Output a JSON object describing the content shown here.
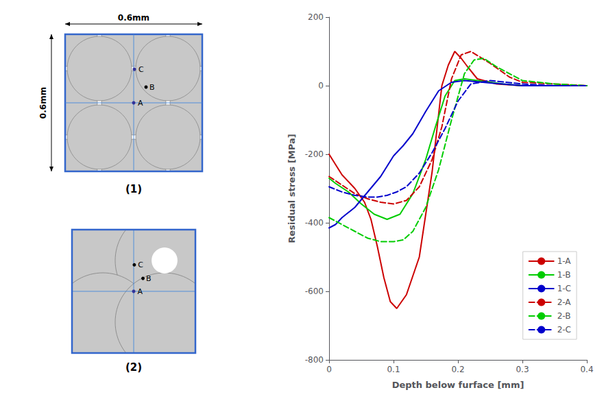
{
  "chart_data": {
    "type": "line",
    "xlabel": "Depth below furface [mm]",
    "ylabel": "Residual stress [MPa]",
    "xlim": [
      0,
      0.4
    ],
    "ylim": [
      -800,
      200
    ],
    "xticks": [
      0,
      0.1,
      0.2,
      0.3,
      0.4
    ],
    "yticks": [
      200,
      0,
      -200,
      -400,
      -600,
      -800
    ],
    "grid": false,
    "legend": "lower right",
    "annotations": [
      "0.6mm",
      "0.6mm",
      "A",
      "B",
      "C",
      "(1)",
      "A",
      "B",
      "C",
      "(2)"
    ],
    "series": [
      {
        "name": "1-A",
        "color": "#cc0000",
        "line_style": "solid",
        "x": [
          0.0,
          0.01,
          0.02,
          0.04,
          0.055,
          0.065,
          0.075,
          0.085,
          0.095,
          0.105,
          0.12,
          0.14,
          0.16,
          0.175,
          0.185,
          0.195,
          0.205,
          0.215,
          0.23,
          0.26,
          0.3,
          0.35,
          0.4
        ],
        "values": [
          -200,
          -230,
          -260,
          -300,
          -340,
          -390,
          -470,
          -560,
          -630,
          -650,
          -610,
          -500,
          -250,
          0,
          60,
          100,
          80,
          55,
          20,
          5,
          0,
          0,
          0
        ]
      },
      {
        "name": "1-B",
        "color": "#00cc00",
        "line_style": "solid",
        "x": [
          0.0,
          0.01,
          0.03,
          0.05,
          0.07,
          0.09,
          0.11,
          0.13,
          0.15,
          0.165,
          0.18,
          0.195,
          0.21,
          0.23,
          0.27,
          0.3,
          0.35,
          0.4
        ],
        "values": [
          -270,
          -285,
          -310,
          -345,
          -375,
          -390,
          -375,
          -315,
          -215,
          -120,
          -30,
          15,
          20,
          15,
          5,
          0,
          0,
          0
        ]
      },
      {
        "name": "1-C",
        "color": "#0000cc",
        "line_style": "solid",
        "x": [
          0.0,
          0.01,
          0.02,
          0.04,
          0.06,
          0.08,
          0.1,
          0.115,
          0.13,
          0.15,
          0.17,
          0.19,
          0.21,
          0.25,
          0.3,
          0.35,
          0.4
        ],
        "values": [
          -415,
          -405,
          -385,
          -355,
          -310,
          -265,
          -205,
          -175,
          -140,
          -75,
          -15,
          10,
          15,
          8,
          0,
          0,
          0
        ]
      },
      {
        "name": "2-A",
        "color": "#cc0000",
        "line_style": "dashed",
        "x": [
          0.0,
          0.02,
          0.04,
          0.06,
          0.08,
          0.1,
          0.12,
          0.14,
          0.16,
          0.175,
          0.19,
          0.205,
          0.22,
          0.25,
          0.28,
          0.3,
          0.35,
          0.4
        ],
        "values": [
          -265,
          -290,
          -315,
          -330,
          -340,
          -345,
          -335,
          -295,
          -215,
          -120,
          20,
          90,
          100,
          65,
          25,
          10,
          5,
          0
        ]
      },
      {
        "name": "2-B",
        "color": "#00cc00",
        "line_style": "dashed",
        "x": [
          0.0,
          0.02,
          0.04,
          0.06,
          0.08,
          0.1,
          0.115,
          0.13,
          0.15,
          0.17,
          0.19,
          0.21,
          0.225,
          0.24,
          0.26,
          0.3,
          0.35,
          0.4
        ],
        "values": [
          -385,
          -405,
          -425,
          -445,
          -455,
          -455,
          -450,
          -425,
          -355,
          -245,
          -100,
          35,
          75,
          80,
          55,
          15,
          5,
          0
        ]
      },
      {
        "name": "2-C",
        "color": "#0000cc",
        "line_style": "dashed",
        "x": [
          0.0,
          0.02,
          0.04,
          0.06,
          0.075,
          0.09,
          0.105,
          0.12,
          0.14,
          0.16,
          0.18,
          0.2,
          0.22,
          0.25,
          0.3,
          0.35,
          0.4
        ],
        "values": [
          -295,
          -310,
          -320,
          -325,
          -325,
          -320,
          -310,
          -295,
          -255,
          -195,
          -125,
          -45,
          5,
          15,
          5,
          0,
          0
        ]
      }
    ]
  }
}
